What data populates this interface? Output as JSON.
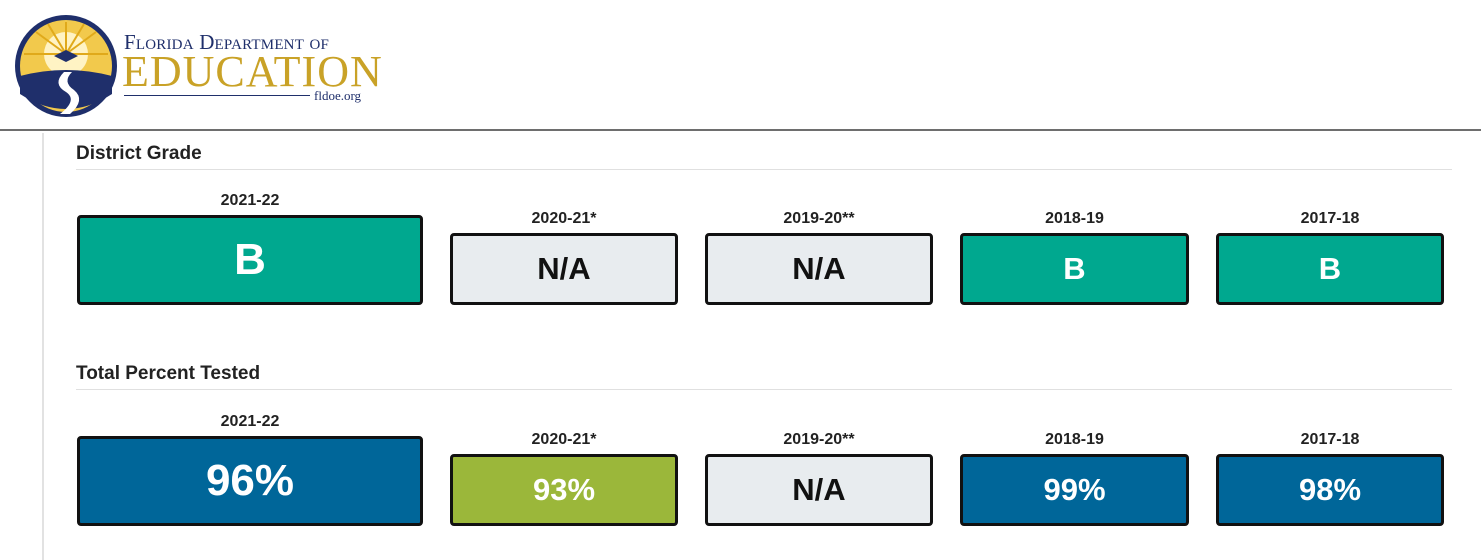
{
  "header": {
    "logo_line1": "Florida Department of",
    "logo_line2": "EDUCATION",
    "logo_url": "fldoe.org"
  },
  "district_grade": {
    "title": "District Grade",
    "items": [
      {
        "year": "2021-22",
        "value": "B",
        "color": "#00a88f"
      },
      {
        "year": "2020-21*",
        "value": "N/A",
        "color": "#e8ecef"
      },
      {
        "year": "2019-20**",
        "value": "N/A",
        "color": "#e8ecef"
      },
      {
        "year": "2018-19",
        "value": "B",
        "color": "#00a88f"
      },
      {
        "year": "2017-18",
        "value": "B",
        "color": "#00a88f"
      }
    ]
  },
  "percent_tested": {
    "title": "Total Percent Tested",
    "items": [
      {
        "year": "2021-22",
        "value": "96%",
        "color": "#006699"
      },
      {
        "year": "2020-21*",
        "value": "93%",
        "color": "#9bb73a"
      },
      {
        "year": "2019-20**",
        "value": "N/A",
        "color": "#e8ecef"
      },
      {
        "year": "2018-19",
        "value": "99%",
        "color": "#006699"
      },
      {
        "year": "2017-18",
        "value": "98%",
        "color": "#006699"
      }
    ]
  }
}
